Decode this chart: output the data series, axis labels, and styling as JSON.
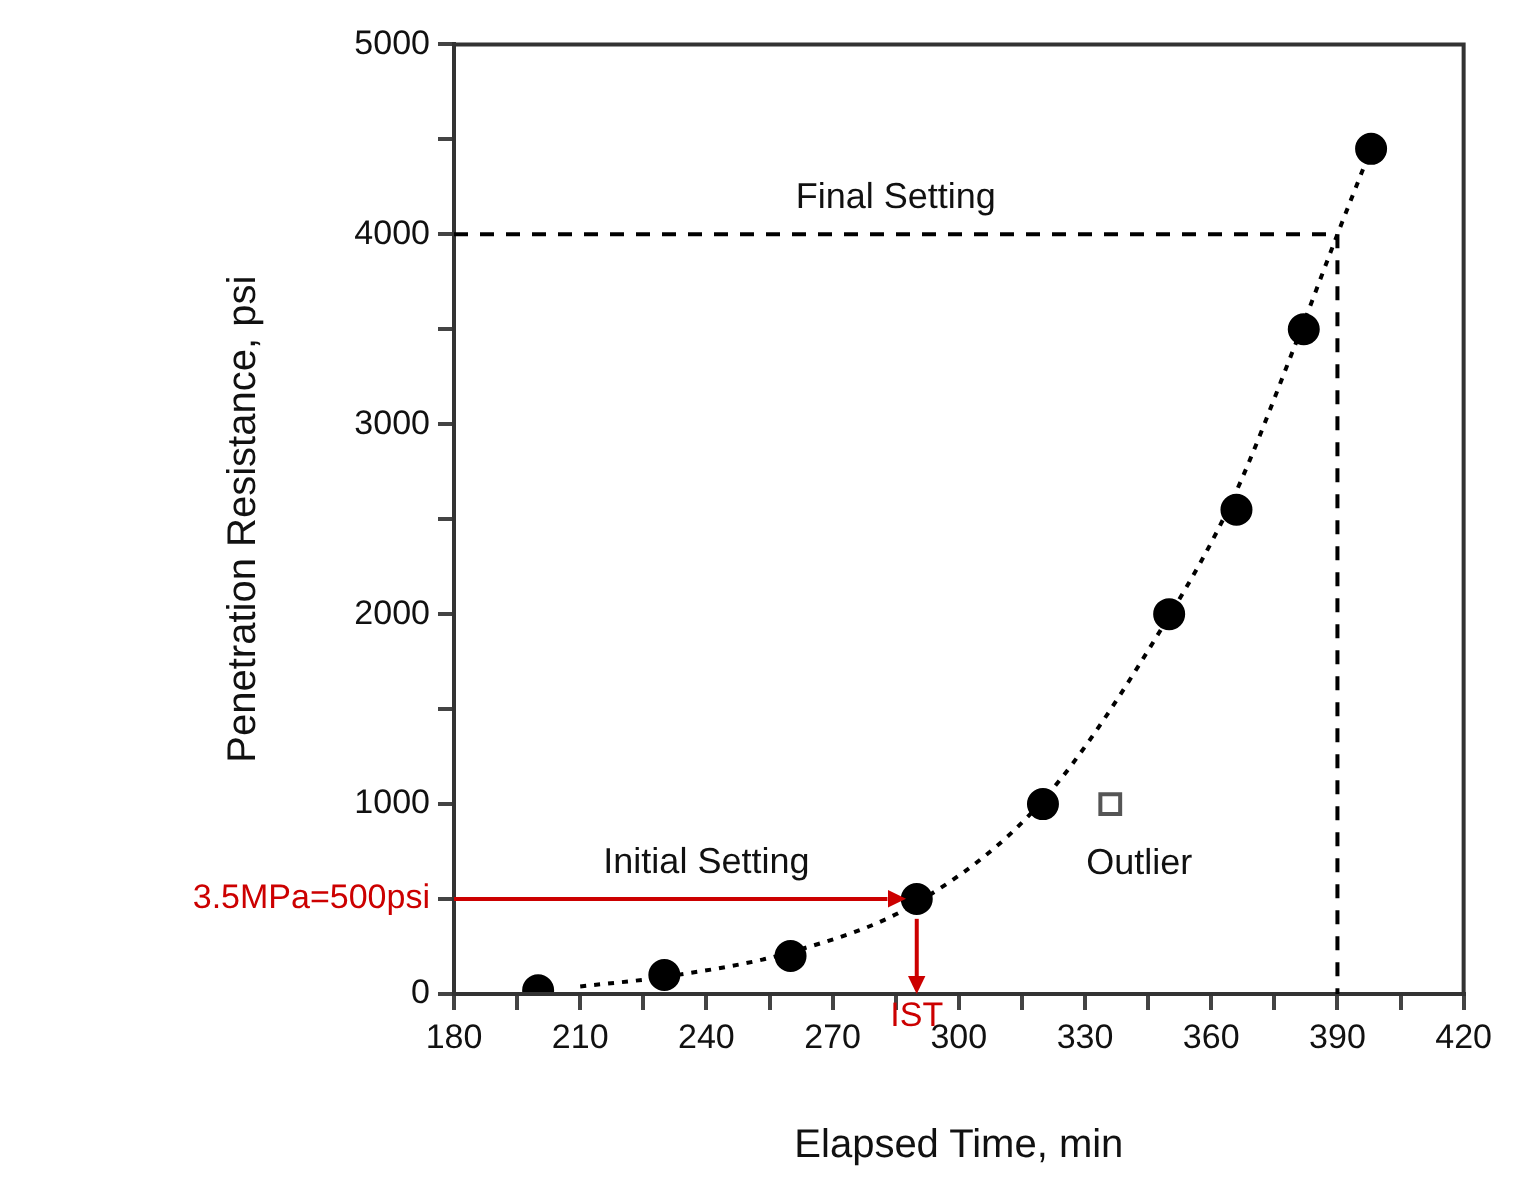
{
  "chart_data": {
    "type": "scatter",
    "xlabel": "Elapsed Time, min",
    "ylabel": "Penetration Resistance, psi",
    "xlim": [
      180,
      420
    ],
    "xticks": [
      180,
      {
        "value": 195,
        "label": null
      },
      210,
      {
        "value": 225,
        "label": null
      },
      240,
      {
        "value": 255,
        "label": null
      },
      270,
      {
        "value": 285,
        "label": null
      },
      300,
      {
        "value": 315,
        "label": null
      },
      330,
      {
        "value": 345,
        "label": null
      },
      360,
      {
        "value": 375,
        "label": null
      },
      390,
      {
        "value": 405,
        "label": null
      },
      420
    ],
    "ylim": [
      0,
      5000
    ],
    "yticks": [
      0,
      {
        "value": 500,
        "label": null
      },
      1000,
      {
        "value": 1500,
        "label": null
      },
      2000,
      {
        "value": 2500,
        "label": null
      },
      3000,
      {
        "value": 3500,
        "label": null
      },
      4000,
      {
        "value": 4500,
        "label": null
      },
      5000
    ],
    "grid": false,
    "legend": false,
    "series": [
      {
        "marker": "circle",
        "color": "#000000",
        "x": [
          200,
          230,
          260,
          290,
          320,
          350,
          366,
          382,
          398
        ],
        "values": [
          20,
          100,
          200,
          500,
          1000,
          2000,
          2550,
          3500,
          4450
        ]
      },
      {
        "name": "Outlier",
        "marker": "square",
        "color": "#555555",
        "x": [
          336
        ],
        "values": [
          1000
        ]
      },
      {
        "type": "line",
        "marker": "none",
        "line_style": "dotted",
        "color": "#000000",
        "x": [
          210,
          230,
          260,
          290,
          320,
          350,
          365,
          380,
          390,
          398
        ],
        "values": [
          40,
          90,
          220,
          480,
          1020,
          1990,
          2600,
          3420,
          4000,
          4450
        ]
      }
    ],
    "ref_lines": [
      {
        "axis": "y",
        "value": 4000,
        "color": "#000000",
        "line_style": "dashed"
      },
      {
        "axis": "x",
        "value": 390,
        "color": "#000000",
        "line_style": "dashed"
      },
      {
        "axis": "y",
        "value": 500,
        "label": "3.5MPa=500psi",
        "color": "#cc0000",
        "line_style": "solid"
      },
      {
        "axis": "x",
        "value": 290,
        "label": "IST",
        "color": "#cc0000",
        "line_style": "solid"
      }
    ],
    "annotations": [
      {
        "text": "Final Setting",
        "x": 285,
        "y": 4000
      },
      {
        "text": "Initial Setting",
        "x": 240,
        "y": 500
      }
    ]
  }
}
